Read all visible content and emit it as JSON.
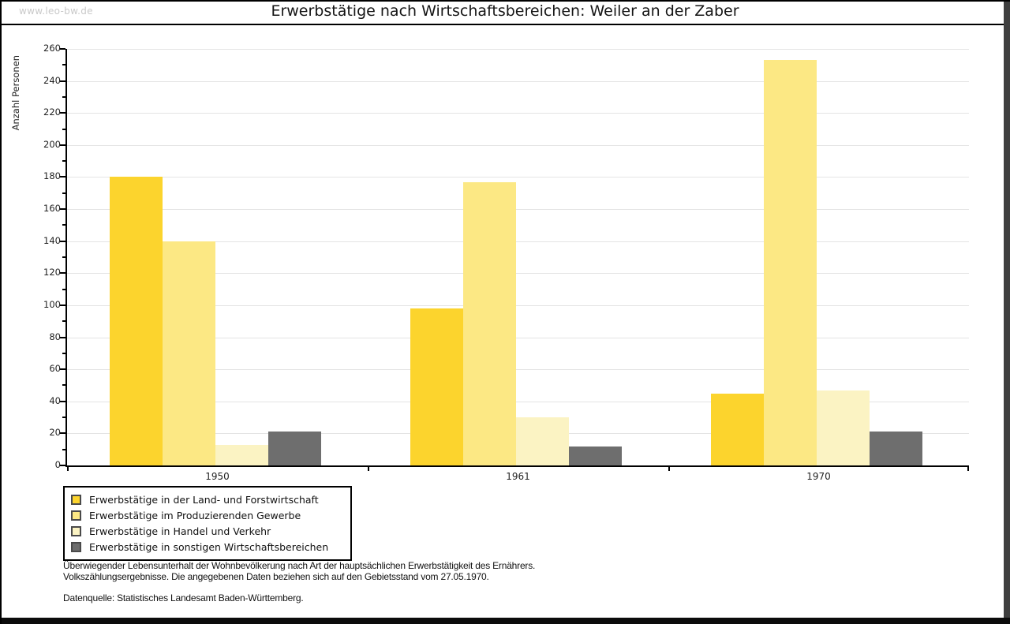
{
  "watermark": "www.leo-bw.de",
  "title": "Erwerbstätige nach Wirtschaftsbereichen: Weiler an der Zaber",
  "footer": {
    "note_line1": "Überwiegender Lebensunterhalt der Wohnbevölkerung nach Art der hauptsächlichen Erwerbstätigkeit des Ernährers.",
    "note_line2": "Volkszählungsergebnisse. Die angegebenen Daten beziehen sich auf den Gebietsstand vom 27.05.1970.",
    "source": "Datenquelle: Statistisches Landesamt Baden-Württemberg."
  },
  "chart_data": {
    "type": "bar",
    "title": "Erwerbstätige nach Wirtschaftsbereichen: Weiler an der Zaber",
    "xlabel": "",
    "ylabel": "Anzahl Personen",
    "categories": [
      "1950",
      "1961",
      "1970"
    ],
    "series": [
      {
        "name": "Erwerbstätige in der Land- und Forstwirtschaft",
        "color": "#FCD42D",
        "values": [
          180,
          98,
          45
        ]
      },
      {
        "name": "Erwerbstätige im Produzierenden Gewerbe",
        "color": "#FCE884",
        "values": [
          140,
          177,
          253
        ]
      },
      {
        "name": "Erwerbstätige in Handel und Verkehr",
        "color": "#FBF3C3",
        "values": [
          13,
          30,
          47
        ]
      },
      {
        "name": "Erwerbstätige in sonstigen Wirtschaftsbereichen",
        "color": "#6E6E6E",
        "values": [
          21,
          12,
          21
        ]
      }
    ],
    "ylim": [
      0,
      260
    ],
    "ytick_step": 20,
    "yminor_step": 10,
    "grid": true,
    "gridline_color": "#e4e4e4",
    "legend_position": "bottom-left"
  }
}
